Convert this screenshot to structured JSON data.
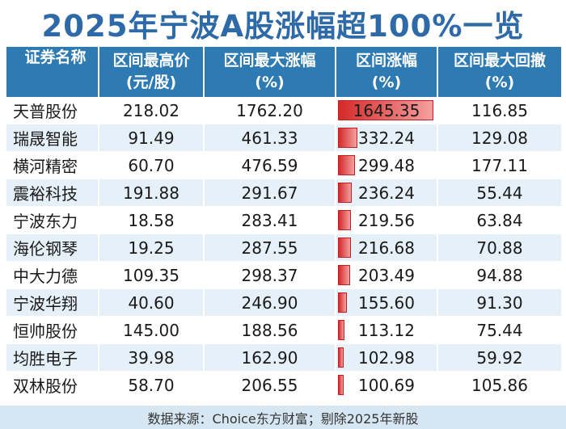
{
  "title": "2025年宁波A股涨幅超100%一览",
  "headers": [
    {
      "line1": "证券名称",
      "line2": ""
    },
    {
      "line1": "区间最高价",
      "line2": "(元/股)"
    },
    {
      "line1": "区间最大涨幅",
      "line2": "(%)"
    },
    {
      "line1": "区间涨幅",
      "line2": "(%)"
    },
    {
      "line1": "区间最大回撤",
      "line2": "(%)"
    }
  ],
  "rows": [
    {
      "name": "天普股份",
      "high": "218.02",
      "max_gain": "1762.20",
      "gain": "1645.35",
      "gain_value": 1645.35,
      "drawdown": "116.85"
    },
    {
      "name": "瑞晟智能",
      "high": "91.49",
      "max_gain": "461.33",
      "gain": "332.24",
      "gain_value": 332.24,
      "drawdown": "129.08"
    },
    {
      "name": "横河精密",
      "high": "60.70",
      "max_gain": "476.59",
      "gain": "299.48",
      "gain_value": 299.48,
      "drawdown": "177.11"
    },
    {
      "name": "震裕科技",
      "high": "191.88",
      "max_gain": "291.67",
      "gain": "236.24",
      "gain_value": 236.24,
      "drawdown": "55.44"
    },
    {
      "name": "宁波东力",
      "high": "18.58",
      "max_gain": "283.41",
      "gain": "219.56",
      "gain_value": 219.56,
      "drawdown": "63.84"
    },
    {
      "name": "海伦钢琴",
      "high": "19.25",
      "max_gain": "287.55",
      "gain": "216.68",
      "gain_value": 216.68,
      "drawdown": "70.88"
    },
    {
      "name": "中大力德",
      "high": "109.35",
      "max_gain": "298.37",
      "gain": "203.49",
      "gain_value": 203.49,
      "drawdown": "94.88"
    },
    {
      "name": "宁波华翔",
      "high": "40.60",
      "max_gain": "246.90",
      "gain": "155.60",
      "gain_value": 155.6,
      "drawdown": "91.30"
    },
    {
      "name": "恒帅股份",
      "high": "145.00",
      "max_gain": "188.56",
      "gain": "113.12",
      "gain_value": 113.12,
      "drawdown": "75.44"
    },
    {
      "name": "均胜电子",
      "high": "39.98",
      "max_gain": "162.90",
      "gain": "102.98",
      "gain_value": 102.98,
      "drawdown": "59.92"
    },
    {
      "name": "双林股份",
      "high": "58.70",
      "max_gain": "206.55",
      "gain": "100.69",
      "gain_value": 100.69,
      "drawdown": "105.86"
    }
  ],
  "colors": {
    "title": "#2e6aa8",
    "header_bg": "#2e7ab3",
    "bar": "#d42a2a",
    "row_alt": "#e6f0f8"
  },
  "footer": "数据来源：Choice东方财富；剔除2025年新股"
}
